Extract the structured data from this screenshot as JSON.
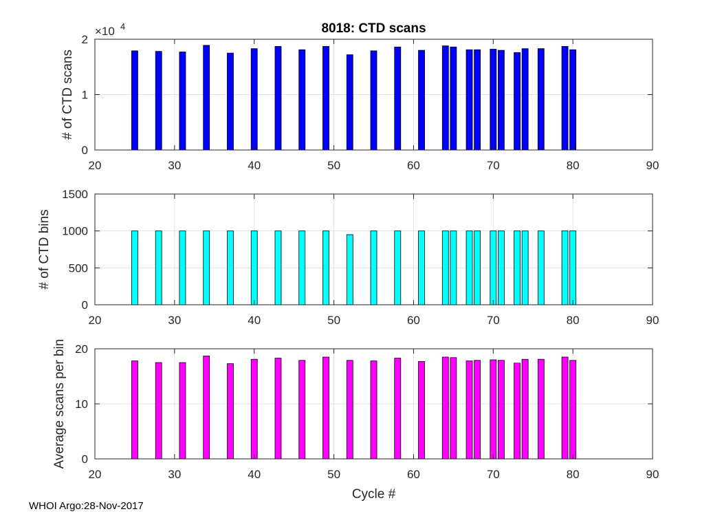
{
  "chart_data": [
    {
      "type": "bar",
      "title": "8018: CTD scans",
      "ylabel": "# of CTD scans",
      "xlabel": "",
      "exponent_label": "×10",
      "exponent_power": "4",
      "xlim": [
        20,
        90
      ],
      "ylim": [
        0,
        20000
      ],
      "xticks": [
        20,
        30,
        40,
        50,
        60,
        70,
        80,
        90
      ],
      "yticks": [
        0,
        10000,
        20000
      ],
      "ytick_labels": [
        "0",
        "1",
        "2"
      ],
      "grid": true,
      "color": "#0000ff",
      "x": [
        25,
        28,
        31,
        34,
        37,
        40,
        43,
        46,
        49,
        52,
        55,
        58,
        61,
        64,
        65,
        67,
        68,
        70,
        71,
        73,
        74,
        76,
        79,
        80
      ],
      "values": [
        17900,
        17800,
        17700,
        18900,
        17500,
        18300,
        18700,
        18100,
        18700,
        17200,
        17900,
        18600,
        18000,
        18800,
        18600,
        18100,
        18100,
        18200,
        18000,
        17600,
        18300,
        18300,
        18700,
        18100
      ]
    },
    {
      "type": "bar",
      "title": "",
      "ylabel": "# of CTD bins",
      "xlabel": "",
      "xlim": [
        20,
        90
      ],
      "ylim": [
        0,
        1500
      ],
      "xticks": [
        20,
        30,
        40,
        50,
        60,
        70,
        80,
        90
      ],
      "yticks": [
        0,
        500,
        1000,
        1500
      ],
      "ytick_labels": [
        "0",
        "500",
        "1000",
        "1500"
      ],
      "grid": true,
      "color": "#00ffff",
      "x": [
        25,
        28,
        31,
        34,
        37,
        40,
        43,
        46,
        49,
        52,
        55,
        58,
        61,
        64,
        65,
        67,
        68,
        70,
        71,
        73,
        74,
        76,
        79,
        80
      ],
      "values": [
        1000,
        1000,
        1000,
        1000,
        1000,
        1000,
        1000,
        1000,
        1000,
        950,
        1000,
        1000,
        1000,
        1000,
        1000,
        1000,
        1000,
        1000,
        1000,
        1000,
        1000,
        1000,
        1000,
        1000
      ]
    },
    {
      "type": "bar",
      "title": "",
      "ylabel": "Average scans per bin",
      "xlabel": "Cycle #",
      "xlim": [
        20,
        90
      ],
      "ylim": [
        0,
        20
      ],
      "xticks": [
        20,
        30,
        40,
        50,
        60,
        70,
        80,
        90
      ],
      "yticks": [
        0,
        10,
        20
      ],
      "ytick_labels": [
        "0",
        "10",
        "20"
      ],
      "grid": true,
      "color": "#ff00ff",
      "x": [
        25,
        28,
        31,
        34,
        37,
        40,
        43,
        46,
        49,
        52,
        55,
        58,
        61,
        64,
        65,
        67,
        68,
        70,
        71,
        73,
        74,
        76,
        79,
        80
      ],
      "values": [
        17.8,
        17.5,
        17.5,
        18.7,
        17.3,
        18.1,
        18.3,
        17.9,
        18.5,
        17.9,
        17.8,
        18.3,
        17.7,
        18.5,
        18.4,
        17.8,
        17.9,
        18.0,
        17.9,
        17.4,
        18.1,
        18.1,
        18.5,
        17.9
      ]
    }
  ],
  "footer": "WHOI Argo:28-Nov-2017"
}
